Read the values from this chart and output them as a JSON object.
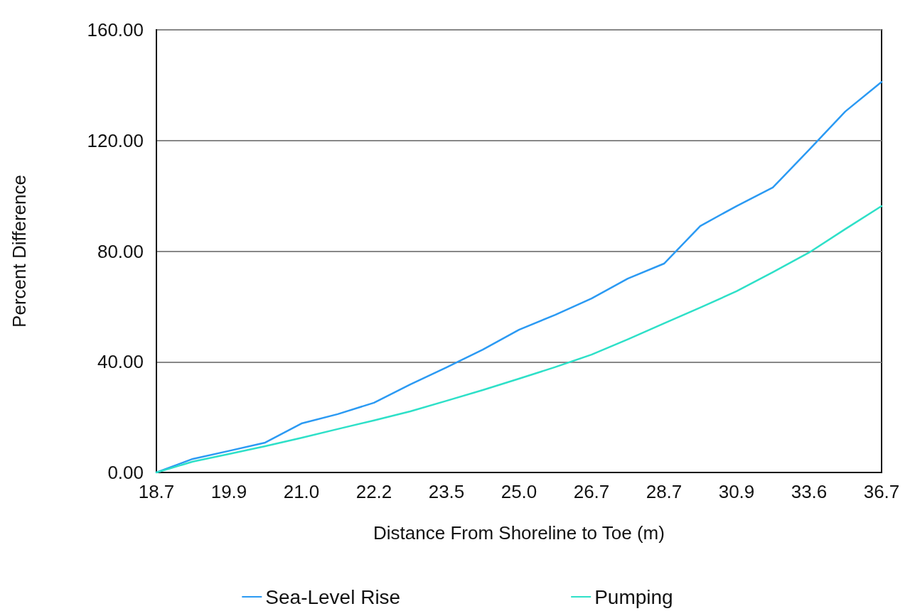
{
  "chart_data": {
    "type": "line",
    "xlabel": "Distance From Shoreline to Toe (m)",
    "ylabel": "Percent Difference",
    "categories": [
      "18.7",
      null,
      "19.9",
      null,
      "21.0",
      null,
      "22.2",
      null,
      "23.5",
      null,
      "25.0",
      null,
      "26.7",
      null,
      "28.7",
      null,
      "30.9",
      null,
      "33.6",
      null,
      "36.7"
    ],
    "series": [
      {
        "name": "Sea-Level Rise",
        "color": "#2b9af3",
        "values": [
          0,
          4.9,
          7.8,
          10.8,
          17.7,
          21.1,
          25.2,
          31.8,
          38.0,
          44.4,
          51.6,
          57.0,
          62.9,
          70.1,
          75.5,
          89.1,
          96.3,
          103.0,
          116.6,
          130.5,
          141.2
        ]
      },
      {
        "name": "Pumping",
        "color": "#2ee0c8",
        "values": [
          0,
          3.9,
          6.7,
          9.5,
          12.5,
          15.7,
          18.8,
          22.1,
          25.9,
          29.8,
          33.9,
          38.1,
          42.6,
          48.1,
          53.9,
          59.6,
          65.5,
          72.4,
          79.5,
          88.0,
          96.3
        ]
      }
    ],
    "ylim": [
      0,
      160
    ],
    "yticks": [
      {
        "value": 0,
        "label": "0.00"
      },
      {
        "value": 40,
        "label": "40.00"
      },
      {
        "value": 80,
        "label": "80.00"
      },
      {
        "value": 120,
        "label": "120.00"
      },
      {
        "value": 160,
        "label": "160.00"
      }
    ],
    "grid": "y",
    "legend": "bottom",
    "marker": "none",
    "line_style": "solid"
  }
}
